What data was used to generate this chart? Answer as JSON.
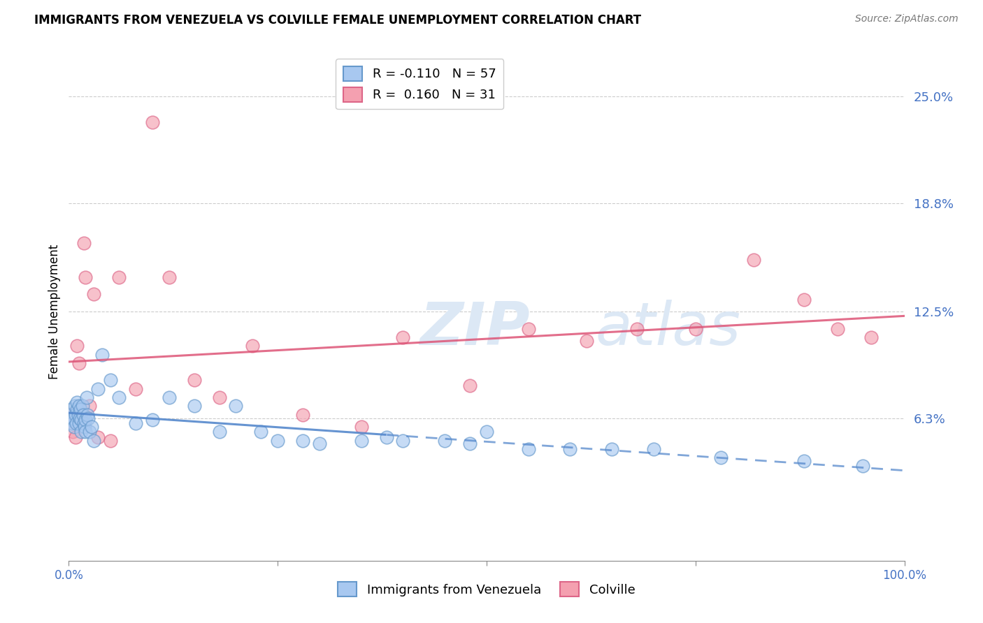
{
  "title": "IMMIGRANTS FROM VENEZUELA VS COLVILLE FEMALE UNEMPLOYMENT CORRELATION CHART",
  "source": "Source: ZipAtlas.com",
  "ylabel": "Female Unemployment",
  "ytick_values": [
    6.3,
    12.5,
    18.8,
    25.0
  ],
  "xlim": [
    0,
    100
  ],
  "ylim": [
    -2,
    27
  ],
  "blue_color": "#a8c8f0",
  "pink_color": "#f4a0b0",
  "blue_edge_color": "#6699cc",
  "pink_edge_color": "#dd6688",
  "blue_line_color": "#5588cc",
  "pink_line_color": "#dd5577",
  "grid_color": "#cccccc",
  "axis_label_color": "#4472c4",
  "watermark_zip_color": "#dce8f5",
  "watermark_atlas_color": "#dce8f5",
  "blue_x": [
    0.1,
    0.2,
    0.3,
    0.4,
    0.5,
    0.6,
    0.7,
    0.8,
    0.9,
    1.0,
    1.0,
    1.1,
    1.2,
    1.2,
    1.3,
    1.4,
    1.5,
    1.5,
    1.6,
    1.7,
    1.8,
    1.9,
    2.0,
    2.0,
    2.1,
    2.2,
    2.3,
    2.5,
    2.7,
    3.0,
    3.5,
    4.0,
    5.0,
    6.0,
    8.0,
    10.0,
    12.0,
    15.0,
    18.0,
    20.0,
    23.0,
    25.0,
    28.0,
    30.0,
    35.0,
    38.0,
    40.0,
    45.0,
    48.0,
    50.0,
    55.0,
    60.0,
    65.0,
    70.0,
    78.0,
    88.0,
    95.0
  ],
  "blue_y": [
    6.5,
    6.2,
    6.8,
    6.0,
    6.3,
    5.8,
    7.0,
    6.5,
    6.0,
    6.8,
    7.2,
    6.5,
    6.0,
    7.0,
    6.3,
    6.8,
    5.5,
    6.2,
    7.0,
    6.5,
    6.0,
    5.8,
    6.2,
    5.5,
    7.5,
    6.5,
    6.3,
    5.5,
    5.8,
    5.0,
    8.0,
    10.0,
    8.5,
    7.5,
    6.0,
    6.2,
    7.5,
    7.0,
    5.5,
    7.0,
    5.5,
    5.0,
    5.0,
    4.8,
    5.0,
    5.2,
    5.0,
    5.0,
    4.8,
    5.5,
    4.5,
    4.5,
    4.5,
    4.5,
    4.0,
    3.8,
    3.5
  ],
  "pink_x": [
    0.2,
    0.5,
    0.8,
    1.0,
    1.2,
    1.5,
    1.8,
    2.0,
    2.5,
    3.0,
    3.5,
    5.0,
    6.0,
    8.0,
    10.0,
    12.0,
    15.0,
    18.0,
    22.0,
    28.0,
    35.0,
    40.0,
    48.0,
    55.0,
    62.0,
    68.0,
    75.0,
    82.0,
    88.0,
    92.0,
    96.0
  ],
  "pink_y": [
    6.5,
    5.5,
    5.2,
    10.5,
    9.5,
    6.5,
    16.5,
    14.5,
    7.0,
    13.5,
    5.2,
    5.0,
    14.5,
    8.0,
    23.5,
    14.5,
    8.5,
    7.5,
    10.5,
    6.5,
    5.8,
    11.0,
    8.2,
    11.5,
    10.8,
    11.5,
    11.5,
    15.5,
    13.2,
    11.5,
    11.0
  ],
  "blue_solid_xmax": 38.0,
  "pink_xmin": 0.0,
  "pink_xmax": 100.0
}
